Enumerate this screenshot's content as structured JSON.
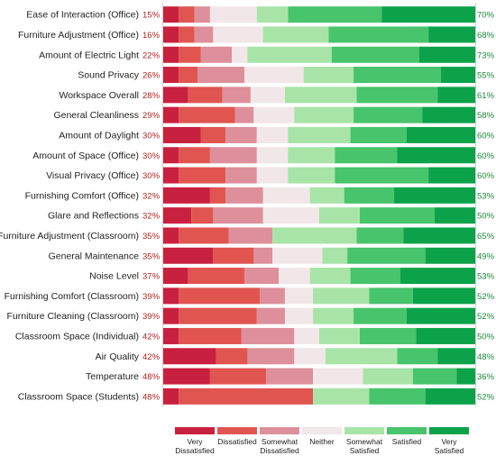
{
  "chart_data": {
    "type": "bar",
    "stacked": "horizontal-100",
    "categories": [
      "Ease of Interaction (Office)",
      "Furniture Adjustment (Office)",
      "Amount of Electric Light",
      "Sound Privacy",
      "Workspace Overall",
      "General Cleanliness",
      "Amount of Daylight",
      "Amount of Space (Office)",
      "Visual Privacy (Office)",
      "Furnishing Comfort (Office)",
      "Glare and Reflections",
      "Furniture Adjustment (Classroom)",
      "General Maintenance",
      "Noise Level",
      "Furnishing Comfort (Classroom)",
      "Furniture Cleaning (Classroom)",
      "Classroom Space (Individual)",
      "Air Quality",
      "Temperature",
      "Classroom Space (Students)"
    ],
    "dissatisfied_labels": [
      "15%",
      "16%",
      "22%",
      "26%",
      "28%",
      "29%",
      "30%",
      "30%",
      "30%",
      "32%",
      "32%",
      "35%",
      "35%",
      "37%",
      "39%",
      "39%",
      "42%",
      "42%",
      "48%",
      "48%"
    ],
    "satisfied_labels": [
      "70%",
      "68%",
      "73%",
      "55%",
      "61%",
      "58%",
      "60%",
      "60%",
      "60%",
      "53%",
      "50%",
      "65%",
      "49%",
      "53%",
      "52%",
      "52%",
      "50%",
      "48%",
      "36%",
      "52%"
    ],
    "series": [
      {
        "name": "Very Dissatisfied",
        "color": "#c8203f",
        "values": [
          5,
          5,
          5,
          5,
          8,
          5,
          12,
          5,
          5,
          15,
          9,
          5,
          16,
          8,
          5,
          5,
          5,
          17,
          15,
          5
        ]
      },
      {
        "name": "Dissatisfied",
        "color": "#e05550",
        "values": [
          5,
          5,
          7,
          6,
          11,
          18,
          8,
          10,
          15,
          5,
          7,
          16,
          13,
          18,
          26,
          25,
          20,
          10,
          18,
          43
        ]
      },
      {
        "name": "Somewhat Dissatisfied",
        "color": "#dd8f9b",
        "values": [
          5,
          6,
          10,
          15,
          9,
          6,
          10,
          15,
          10,
          12,
          16,
          14,
          6,
          11,
          8,
          9,
          17,
          15,
          15,
          0
        ]
      },
      {
        "name": "Neither",
        "color": "#f1e6e8",
        "values": [
          15,
          16,
          5,
          19,
          11,
          13,
          10,
          10,
          10,
          15,
          18,
          0,
          16,
          10,
          9,
          9,
          8,
          10,
          16,
          0
        ]
      },
      {
        "name": "Somewhat Satisfied",
        "color": "#a8e4a8",
        "values": [
          10,
          21,
          27,
          16,
          23,
          19,
          20,
          15,
          15,
          11,
          13,
          27,
          8,
          13,
          18,
          13,
          13,
          23,
          16,
          18
        ]
      },
      {
        "name": "Satisfied",
        "color": "#48c46c",
        "values": [
          30,
          32,
          28,
          28,
          26,
          22,
          18,
          20,
          30,
          16,
          24,
          15,
          25,
          16,
          14,
          17,
          18,
          13,
          14,
          18
        ]
      },
      {
        "name": "Very Satisfied",
        "color": "#0ca24a",
        "values": [
          30,
          15,
          18,
          11,
          12,
          17,
          22,
          25,
          15,
          26,
          13,
          23,
          16,
          24,
          20,
          22,
          19,
          12,
          6,
          16
        ]
      }
    ],
    "xlim": [
      0,
      100
    ],
    "grid": false,
    "legend_position": "bottom"
  }
}
